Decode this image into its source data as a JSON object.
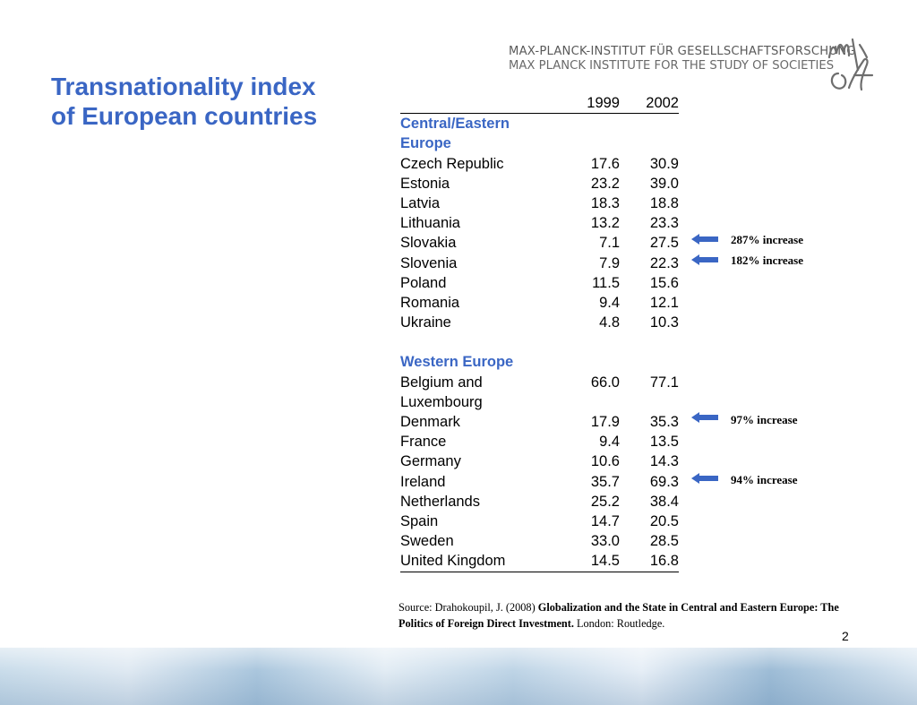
{
  "title": {
    "line1": "Transnationality index",
    "line2": "of European countries"
  },
  "institute": {
    "line1": "MAX-PLANCK-INSTITUT FÜR GESELLSCHAFTSFORSCHUNG",
    "line2": "MAX PLANCK INSTITUTE FOR THE STUDY OF SOCIETIES"
  },
  "table": {
    "col1": "1999",
    "col2": "2002",
    "group1": {
      "line1": "Central/Eastern",
      "line2": "Europe"
    },
    "rows1": [
      {
        "name": "Czech Republic",
        "v1999": "17.6",
        "v2002": "30.9"
      },
      {
        "name": "Estonia",
        "v1999": "23.2",
        "v2002": "39.0"
      },
      {
        "name": "Latvia",
        "v1999": "18.3",
        "v2002": "18.8"
      },
      {
        "name": "Lithuania",
        "v1999": "13.2",
        "v2002": "23.3"
      },
      {
        "name": "Slovakia",
        "v1999": "7.1",
        "v2002": "27.5"
      },
      {
        "name": "Slovenia",
        "v1999": "7.9",
        "v2002": "22.3"
      },
      {
        "name": "Poland",
        "v1999": "11.5",
        "v2002": "15.6"
      },
      {
        "name": "Romania",
        "v1999": "9.4",
        "v2002": "12.1"
      },
      {
        "name": "Ukraine",
        "v1999": "4.8",
        "v2002": "10.3"
      }
    ],
    "group2": "Western Europe",
    "belgium": {
      "line1": "Belgium and",
      "line2": "Luxembourg",
      "v1999": "66.0",
      "v2002": "77.1"
    },
    "rows2": [
      {
        "name": "Denmark",
        "v1999": "17.9",
        "v2002": "35.3"
      },
      {
        "name": "France",
        "v1999": "9.4",
        "v2002": "13.5"
      },
      {
        "name": "Germany",
        "v1999": "10.6",
        "v2002": "14.3"
      },
      {
        "name": "Ireland",
        "v1999": "35.7",
        "v2002": "69.3"
      },
      {
        "name": "Netherlands",
        "v1999": "25.2",
        "v2002": "38.4"
      },
      {
        "name": "Spain",
        "v1999": "14.7",
        "v2002": "20.5"
      },
      {
        "name": "Sweden",
        "v1999": "33.0",
        "v2002": "28.5"
      },
      {
        "name": "United Kingdom",
        "v1999": "14.5",
        "v2002": "16.8"
      }
    ]
  },
  "notes": {
    "slovakia": "287% increase",
    "slovenia": "182% increase",
    "denmark": "97% increase",
    "ireland": "94% increase"
  },
  "source": {
    "prefix": "Source: Drahokoupil, J. (2008) ",
    "bold": "Globalization and the State in Central and Eastern Europe: The Politics of Foreign Direct Investment.",
    "suffix": " London: Routledge."
  },
  "page_number": "2",
  "colors": {
    "accent": "#3a66c4",
    "arrow": "#3a66c4"
  }
}
